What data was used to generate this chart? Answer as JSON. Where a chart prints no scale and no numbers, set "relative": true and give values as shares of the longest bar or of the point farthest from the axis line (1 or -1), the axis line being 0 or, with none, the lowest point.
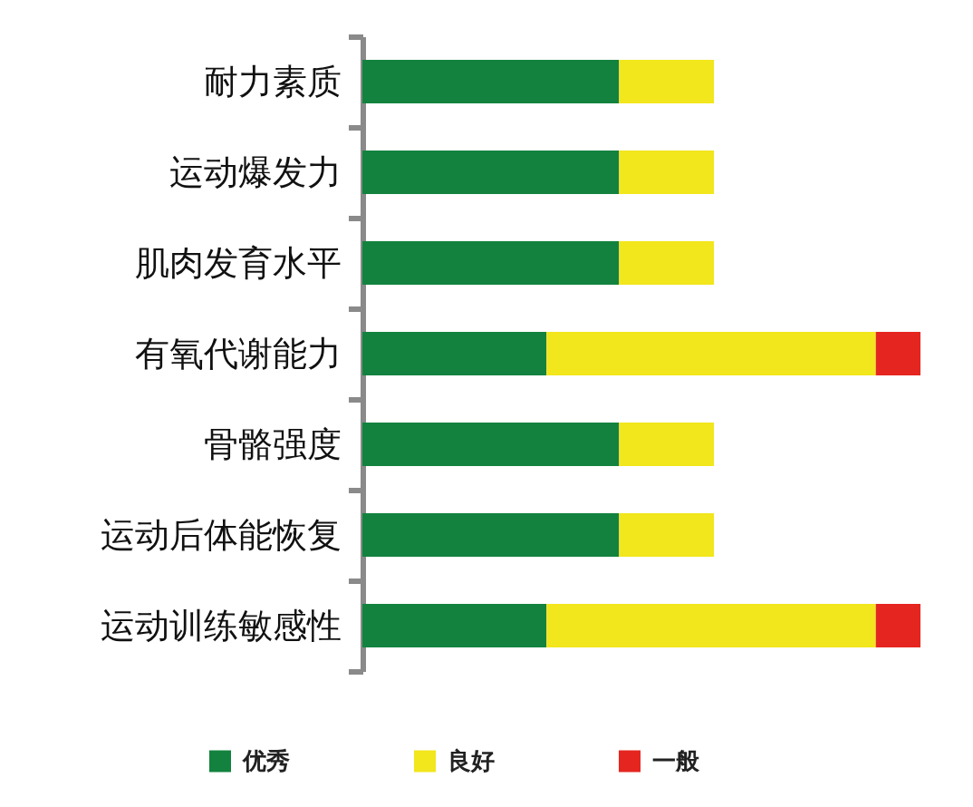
{
  "chart_data": {
    "type": "bar",
    "orientation": "horizontal",
    "stacked": true,
    "relative": true,
    "categories": [
      "耐力素质",
      "运动爆发力",
      "肌肉发育水平",
      "有氧代谢能力",
      "骨骼强度",
      "运动后体能恢复",
      "运动训练敏感性"
    ],
    "series": [
      {
        "name": "优秀",
        "color": "#13823e",
        "values": [
          0.46,
          0.46,
          0.46,
          0.33,
          0.46,
          0.46,
          0.33
        ]
      },
      {
        "name": "良好",
        "color": "#f2e61c",
        "values": [
          0.17,
          0.17,
          0.17,
          0.59,
          0.17,
          0.17,
          0.59
        ]
      },
      {
        "name": "一般",
        "color": "#e52620",
        "values": [
          null,
          null,
          null,
          0.08,
          null,
          null,
          0.08
        ]
      }
    ],
    "legend": "bottom"
  }
}
